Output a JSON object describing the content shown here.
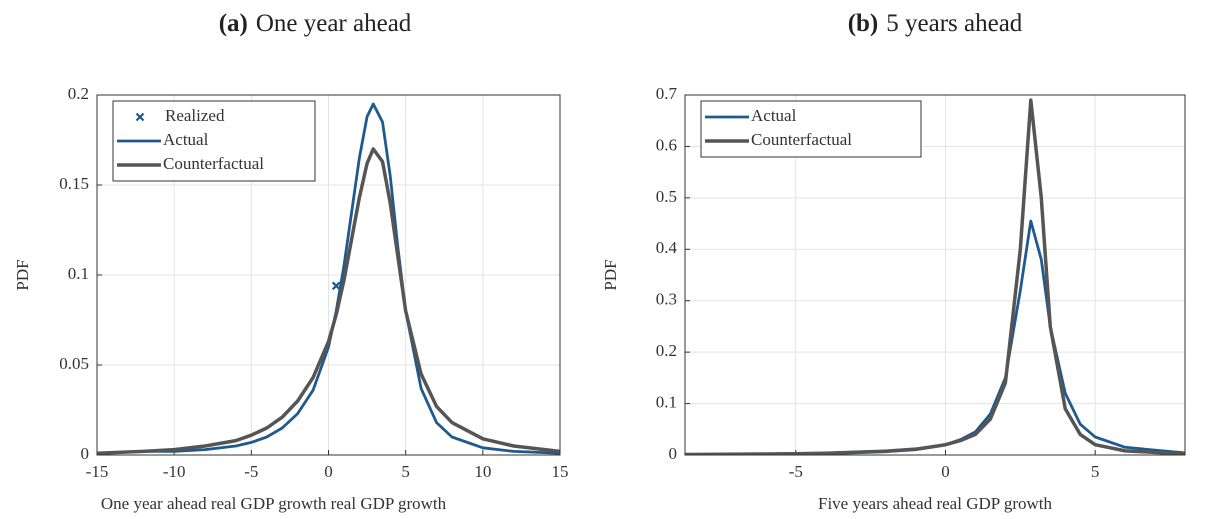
{
  "chart_data": [
    {
      "type": "line",
      "panel_label": "(a)",
      "title": "One year ahead",
      "xlabel": "One year ahead real GDP growth real GDP growth",
      "ylabel": "PDF",
      "x": [
        -15,
        -12,
        -10,
        -8,
        -6,
        -5,
        -4,
        -3,
        -2,
        -1,
        0,
        0.5,
        1,
        1.5,
        2,
        2.5,
        2.9,
        3.5,
        4,
        4.5,
        5,
        6,
        7,
        8,
        10,
        12,
        15
      ],
      "series": [
        {
          "name": "Realized",
          "color": "#1f5a8f",
          "marker": "x",
          "x": [
            0.5
          ],
          "values": [
            0.094
          ]
        },
        {
          "name": "Actual",
          "color": "#1f5a8f",
          "values": [
            0.001,
            0.002,
            0.002,
            0.003,
            0.005,
            0.007,
            0.01,
            0.015,
            0.023,
            0.036,
            0.06,
            0.08,
            0.105,
            0.135,
            0.165,
            0.188,
            0.195,
            0.185,
            0.155,
            0.115,
            0.08,
            0.037,
            0.018,
            0.01,
            0.004,
            0.002,
            0.001
          ]
        },
        {
          "name": "Counterfactual",
          "color": "#555555",
          "values": [
            0.001,
            0.002,
            0.003,
            0.005,
            0.008,
            0.011,
            0.015,
            0.021,
            0.03,
            0.043,
            0.063,
            0.078,
            0.097,
            0.12,
            0.143,
            0.162,
            0.17,
            0.163,
            0.14,
            0.11,
            0.08,
            0.045,
            0.027,
            0.018,
            0.009,
            0.005,
            0.002
          ]
        }
      ],
      "xlim": [
        -15,
        15
      ],
      "xticks": [
        -15,
        -10,
        -5,
        0,
        5,
        10,
        15
      ],
      "ylim": [
        0,
        0.2
      ],
      "yticks": [
        0,
        0.05,
        0.1,
        0.15,
        0.2
      ],
      "grid": true,
      "legend": "upper left"
    },
    {
      "type": "line",
      "panel_label": "(b)",
      "title": "5 years ahead",
      "xlabel": "Five years ahead real GDP growth",
      "ylabel": "PDF",
      "x": [
        -8.7,
        -6,
        -4,
        -2,
        -1,
        0,
        0.5,
        1,
        1.5,
        2,
        2.5,
        2.85,
        3.2,
        3.5,
        4,
        4.5,
        5,
        6,
        8
      ],
      "series": [
        {
          "name": "Actual",
          "color": "#1f5a8f",
          "values": [
            0.001,
            0.002,
            0.004,
            0.008,
            0.012,
            0.02,
            0.03,
            0.045,
            0.08,
            0.15,
            0.32,
            0.455,
            0.38,
            0.25,
            0.12,
            0.06,
            0.035,
            0.015,
            0.004
          ]
        },
        {
          "name": "Counterfactual",
          "color": "#555555",
          "values": [
            0.001,
            0.002,
            0.003,
            0.007,
            0.011,
            0.02,
            0.028,
            0.04,
            0.07,
            0.14,
            0.4,
            0.69,
            0.5,
            0.25,
            0.09,
            0.04,
            0.02,
            0.008,
            0.002
          ]
        }
      ],
      "xlim": [
        -8.7,
        8
      ],
      "xticks": [
        -5,
        0,
        5
      ],
      "ylim": [
        0,
        0.7
      ],
      "yticks": [
        0,
        0.1,
        0.2,
        0.3,
        0.4,
        0.5,
        0.6,
        0.7
      ],
      "grid": true,
      "legend": "upper left"
    }
  ]
}
